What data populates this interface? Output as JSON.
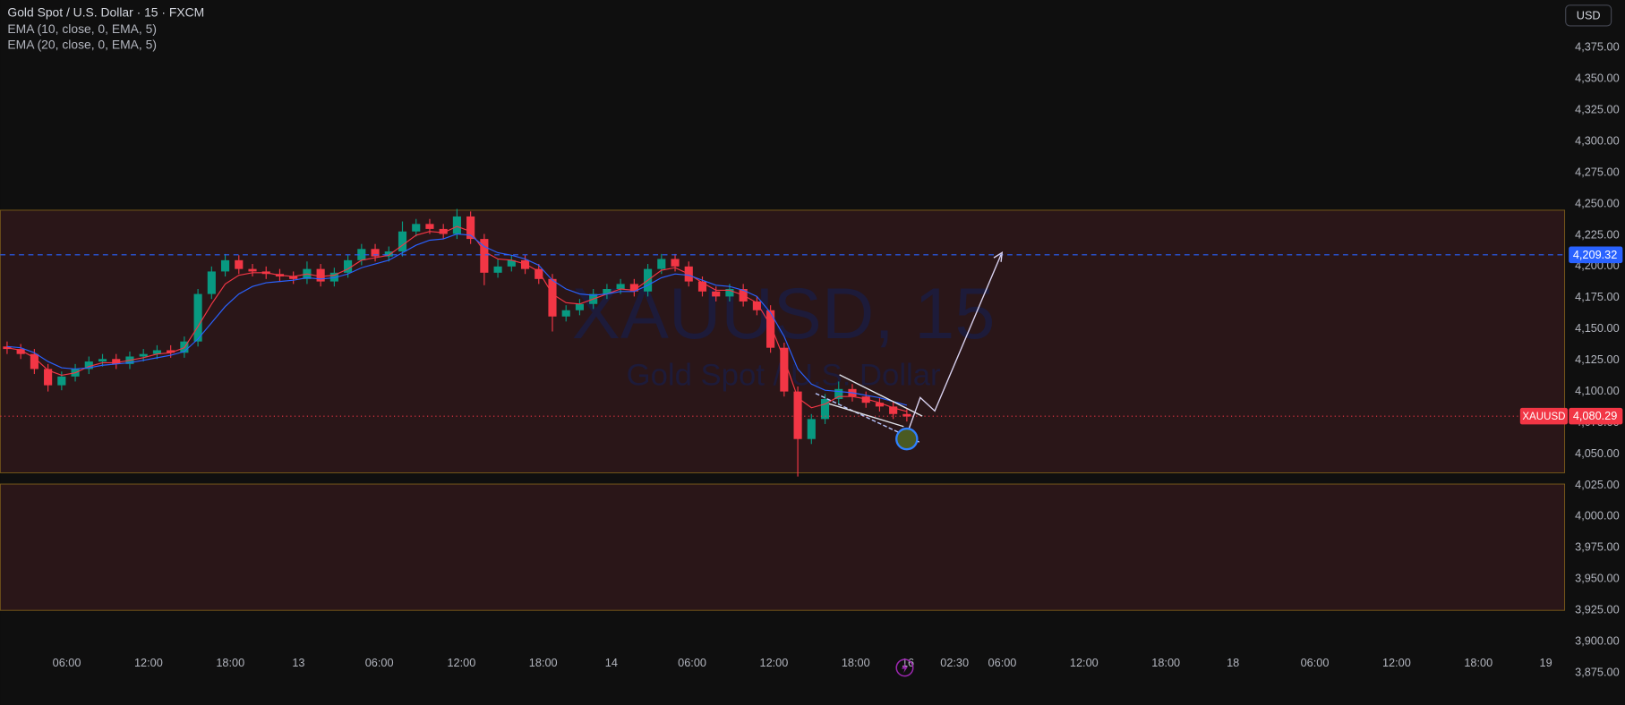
{
  "chart_data": {
    "type": "candlestick",
    "title": "Gold Spot / U.S. Dollar · 15 · FXCM",
    "watermark": "XAUUSD, 15",
    "watermark_subtitle": "Gold Spot / U.S. Dollar",
    "currency": "USD",
    "x": [
      2,
      6,
      10,
      14,
      18,
      22,
      26,
      30,
      34,
      38,
      42,
      46,
      50,
      54,
      58,
      62,
      66,
      70,
      74,
      78,
      82,
      86,
      90,
      94,
      98,
      102,
      106,
      110,
      114,
      118,
      122,
      126,
      130,
      134,
      138,
      142,
      146,
      150,
      154,
      158,
      162,
      166,
      170,
      174,
      178,
      182,
      186,
      190,
      194,
      198,
      202,
      206,
      210,
      214,
      218,
      222,
      226,
      230,
      234,
      238,
      242,
      246,
      250,
      254,
      258,
      262,
      266
    ],
    "open": [
      4136,
      4134,
      4130,
      4118,
      4105,
      4112,
      4118,
      4124,
      4126,
      4122,
      4128,
      4130,
      4133,
      4131,
      4140,
      4178,
      4196,
      4205,
      4198,
      4196,
      4194,
      4192,
      4190,
      4198,
      4188,
      4195,
      4205,
      4214,
      4208,
      4212,
      4228,
      4234,
      4230,
      4226,
      4240,
      4222,
      4195,
      4200,
      4205,
      4198,
      4190,
      4160,
      4165,
      4170,
      4178,
      4182,
      4186,
      4180,
      4198,
      4206,
      4200,
      4188,
      4180,
      4176,
      4182,
      4172,
      4165,
      4135,
      4100,
      4062,
      4078,
      4094,
      4102,
      4096,
      4091,
      4088,
      4082
    ],
    "high": [
      4140,
      4138,
      4134,
      4122,
      4116,
      4122,
      4128,
      4130,
      4130,
      4132,
      4134,
      4137,
      4137,
      4144,
      4182,
      4200,
      4210,
      4209,
      4202,
      4200,
      4198,
      4196,
      4204,
      4202,
      4199,
      4209,
      4218,
      4218,
      4216,
      4236,
      4238,
      4238,
      4234,
      4246,
      4244,
      4226,
      4206,
      4209,
      4209,
      4202,
      4194,
      4169,
      4174,
      4182,
      4186,
      4190,
      4190,
      4202,
      4210,
      4210,
      4204,
      4192,
      4184,
      4186,
      4186,
      4176,
      4169,
      4139,
      4104,
      4082,
      4098,
      4108,
      4106,
      4100,
      4095,
      4092,
      4086
    ],
    "low": [
      4130,
      4126,
      4114,
      4100,
      4101,
      4108,
      4114,
      4120,
      4118,
      4118,
      4124,
      4126,
      4127,
      4127,
      4136,
      4174,
      4192,
      4194,
      4192,
      4190,
      4188,
      4186,
      4186,
      4184,
      4184,
      4191,
      4201,
      4204,
      4204,
      4208,
      4224,
      4226,
      4222,
      4222,
      4218,
      4185,
      4191,
      4196,
      4194,
      4186,
      4148,
      4156,
      4161,
      4166,
      4174,
      4178,
      4176,
      4176,
      4194,
      4196,
      4184,
      4176,
      4172,
      4172,
      4168,
      4161,
      4131,
      4096,
      4032,
      4058,
      4074,
      4090,
      4092,
      4087,
      4084,
      4078,
      4076
    ],
    "close": [
      4134,
      4130,
      4118,
      4105,
      4112,
      4118,
      4124,
      4126,
      4122,
      4128,
      4130,
      4133,
      4131,
      4140,
      4178,
      4196,
      4205,
      4198,
      4196,
      4194,
      4192,
      4190,
      4198,
      4188,
      4195,
      4205,
      4214,
      4208,
      4212,
      4228,
      4234,
      4230,
      4226,
      4240,
      4222,
      4195,
      4200,
      4205,
      4198,
      4190,
      4160,
      4165,
      4170,
      4178,
      4182,
      4186,
      4180,
      4198,
      4206,
      4200,
      4188,
      4180,
      4176,
      4182,
      4172,
      4165,
      4135,
      4100,
      4062,
      4078,
      4094,
      4102,
      4096,
      4091,
      4088,
      4082,
      4080
    ],
    "up_color": "#089981",
    "down_color": "#f23645",
    "series": [
      {
        "name": "EMA (10, close, 0, EMA, 5)",
        "color": "#f23645",
        "values": [
          4135,
          4133,
          4127,
          4117,
          4113,
          4115,
          4120,
          4123,
          4123,
          4125,
          4127,
          4130,
          4131,
          4135,
          4152,
          4170,
          4186,
          4193,
          4195,
          4195,
          4193,
          4192,
          4194,
          4192,
          4193,
          4198,
          4205,
          4207,
          4209,
          4217,
          4225,
          4228,
          4227,
          4232,
          4228,
          4212,
          4206,
          4205,
          4202,
          4196,
          4178,
          4171,
          4170,
          4174,
          4178,
          4182,
          4181,
          4189,
          4197,
          4199,
          4194,
          4187,
          4181,
          4181,
          4177,
          4171,
          4153,
          4126,
          4095,
          4087,
          4090,
          4096,
          4096,
          4094,
          4091,
          4087,
          4084
        ]
      },
      {
        "name": "EMA (20, close, 0, EMA, 5)",
        "color": "#2962ff",
        "values": [
          4136,
          4135,
          4131,
          4124,
          4119,
          4118,
          4119,
          4121,
          4122,
          4123,
          4125,
          4127,
          4129,
          4132,
          4142,
          4155,
          4168,
          4178,
          4184,
          4187,
          4188,
          4189,
          4191,
          4190,
          4191,
          4194,
          4199,
          4202,
          4205,
          4211,
          4217,
          4221,
          4222,
          4226,
          4225,
          4216,
          4211,
          4209,
          4206,
          4201,
          4189,
          4182,
          4178,
          4177,
          4178,
          4180,
          4180,
          4185,
          4191,
          4194,
          4193,
          4189,
          4185,
          4184,
          4181,
          4176,
          4163,
          4144,
          4118,
          4106,
          4101,
          4100,
          4099,
          4097,
          4095,
          4092,
          4089
        ]
      }
    ],
    "zones": [
      {
        "top": 4245,
        "bottom": 4035,
        "color": "#2a1618"
      },
      {
        "top": 4026,
        "bottom": 3925,
        "color": "#2a1618"
      }
    ],
    "price_lines": [
      {
        "value": 4209.32,
        "label": "4,209.32",
        "color": "#2962ff"
      },
      {
        "name": "XAUUSD",
        "value": 4080.29,
        "label": "4,080.29",
        "color": "#f23645"
      }
    ],
    "xlim": [
      0,
      459
    ],
    "ylim": [
      3849.3,
      4413.1
    ],
    "xticks": [
      {
        "value": 19.5,
        "label": "06:00"
      },
      {
        "value": 43.5,
        "label": "12:00"
      },
      {
        "value": 67.5,
        "label": "18:00"
      },
      {
        "value": 87.5,
        "label": "13"
      },
      {
        "value": 111.2,
        "label": "06:00"
      },
      {
        "value": 135.3,
        "label": "12:00"
      },
      {
        "value": 159.3,
        "label": "18:00"
      },
      {
        "value": 179.3,
        "label": "14"
      },
      {
        "value": 203,
        "label": "06:00"
      },
      {
        "value": 227,
        "label": "12:00"
      },
      {
        "value": 251,
        "label": "18:00"
      },
      {
        "value": 266.3,
        "label": "16"
      },
      {
        "value": 280,
        "label": "02:30"
      },
      {
        "value": 294,
        "label": "06:00"
      },
      {
        "value": 318,
        "label": "12:00"
      },
      {
        "value": 342,
        "label": "18:00"
      },
      {
        "value": 361.7,
        "label": "18"
      },
      {
        "value": 385.7,
        "label": "06:00"
      },
      {
        "value": 409.7,
        "label": "12:00"
      },
      {
        "value": 433.7,
        "label": "18:00"
      },
      {
        "value": 453.5,
        "label": "19"
      }
    ],
    "yticks": [
      {
        "value": 4375,
        "label": "4,375.00"
      },
      {
        "value": 4350,
        "label": "4,350.00"
      },
      {
        "value": 4325,
        "label": "4,325.00"
      },
      {
        "value": 4300,
        "label": "4,300.00"
      },
      {
        "value": 4275,
        "label": "4,275.00"
      },
      {
        "value": 4250,
        "label": "4,250.00"
      },
      {
        "value": 4225,
        "label": "4,225.00"
      },
      {
        "value": 4200,
        "label": "4,200.00"
      },
      {
        "value": 4175,
        "label": "4,175.00"
      },
      {
        "value": 4150,
        "label": "4,150.00"
      },
      {
        "value": 4125,
        "label": "4,125.00"
      },
      {
        "value": 4100,
        "label": "4,100.00"
      },
      {
        "value": 4075,
        "label": "4,075.00"
      },
      {
        "value": 4050,
        "label": "4,050.00"
      },
      {
        "value": 4025,
        "label": "4,025.00"
      },
      {
        "value": 4000,
        "label": "4,000.00"
      },
      {
        "value": 3975,
        "label": "3,975.00"
      },
      {
        "value": 3950,
        "label": "3,950.00"
      },
      {
        "value": 3925,
        "label": "3,925.00"
      },
      {
        "value": 3900,
        "label": "3,900.00"
      },
      {
        "value": 3875,
        "label": "3,875.00"
      }
    ]
  }
}
